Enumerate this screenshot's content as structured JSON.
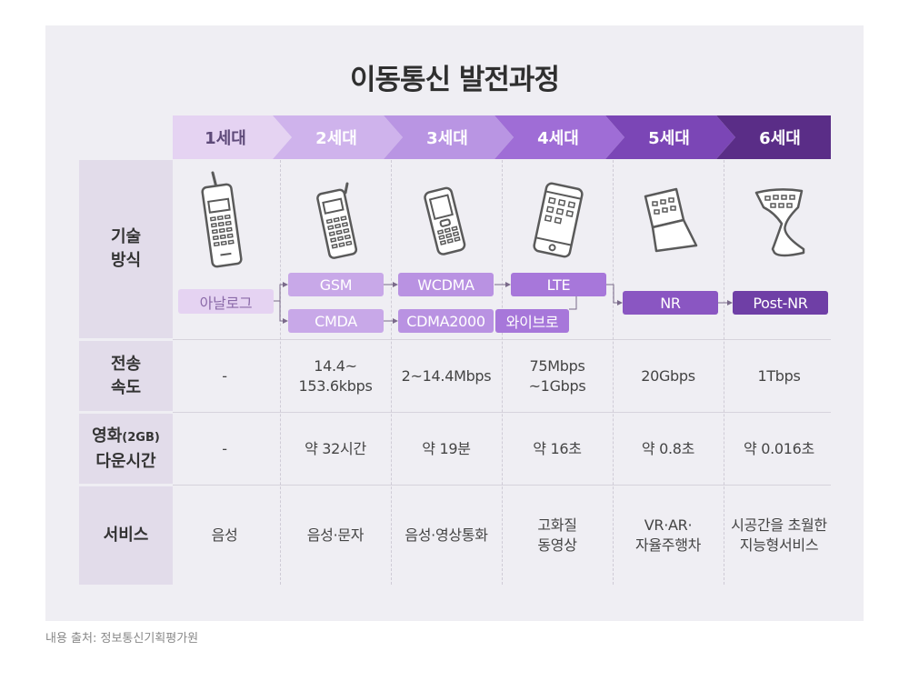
{
  "title": "이동통신 발전과정",
  "generations": [
    "1세대",
    "2세대",
    "3세대",
    "4세대",
    "5세대",
    "6세대"
  ],
  "row_headers": {
    "tech": [
      "기술",
      "방식"
    ],
    "speed": [
      "전송",
      "속도"
    ],
    "download": [
      "영화",
      "(2GB)",
      "다운시간"
    ],
    "service": [
      "서비스"
    ]
  },
  "tech_boxes": {
    "analog": "아날로그",
    "gsm": "GSM",
    "cmda": "CMDA",
    "wcdma": "WCDMA",
    "cdma2000": "CDMA2000",
    "lte": "LTE",
    "wibro": "와이브로",
    "nr": "NR",
    "postnr": "Post-NR"
  },
  "speed": [
    [
      "-"
    ],
    [
      "14.4~",
      "153.6kbps"
    ],
    [
      "2~14.4Mbps"
    ],
    [
      "75Mbps",
      "~1Gbps"
    ],
    [
      "20Gbps"
    ],
    [
      "1Tbps"
    ]
  ],
  "download_time": [
    "-",
    "약 32시간",
    "약 19분",
    "약 16초",
    "약 0.8초",
    "약 0.016초"
  ],
  "services": [
    [
      "음성"
    ],
    [
      "음성·문자"
    ],
    [
      "음성·영상통화"
    ],
    [
      "고화질",
      "동영상"
    ],
    [
      "VR·AR·",
      "자율주행차"
    ],
    [
      "시공간을 초월한",
      "지능형서비스"
    ]
  ],
  "source": "내용 출처: 정보통신기획평가원",
  "colors": {
    "gen1": "#e5d3f2",
    "gen2": "#cfb3ec",
    "gen3": "#b995e3",
    "gen4": "#9f6dd6",
    "gen5": "#7b46b6",
    "gen6": "#5a2d87",
    "box_analog": "#e5d3f2",
    "box_light": "#c8a8e8",
    "box_mid": "#a777da",
    "box_dark": "#6f3fa6"
  },
  "icons": [
    "brick-phone-icon",
    "candybar-phone-icon",
    "slim-phone-icon",
    "smartphone-icon",
    "foldable-phone-icon",
    "flexible-display-icon"
  ]
}
